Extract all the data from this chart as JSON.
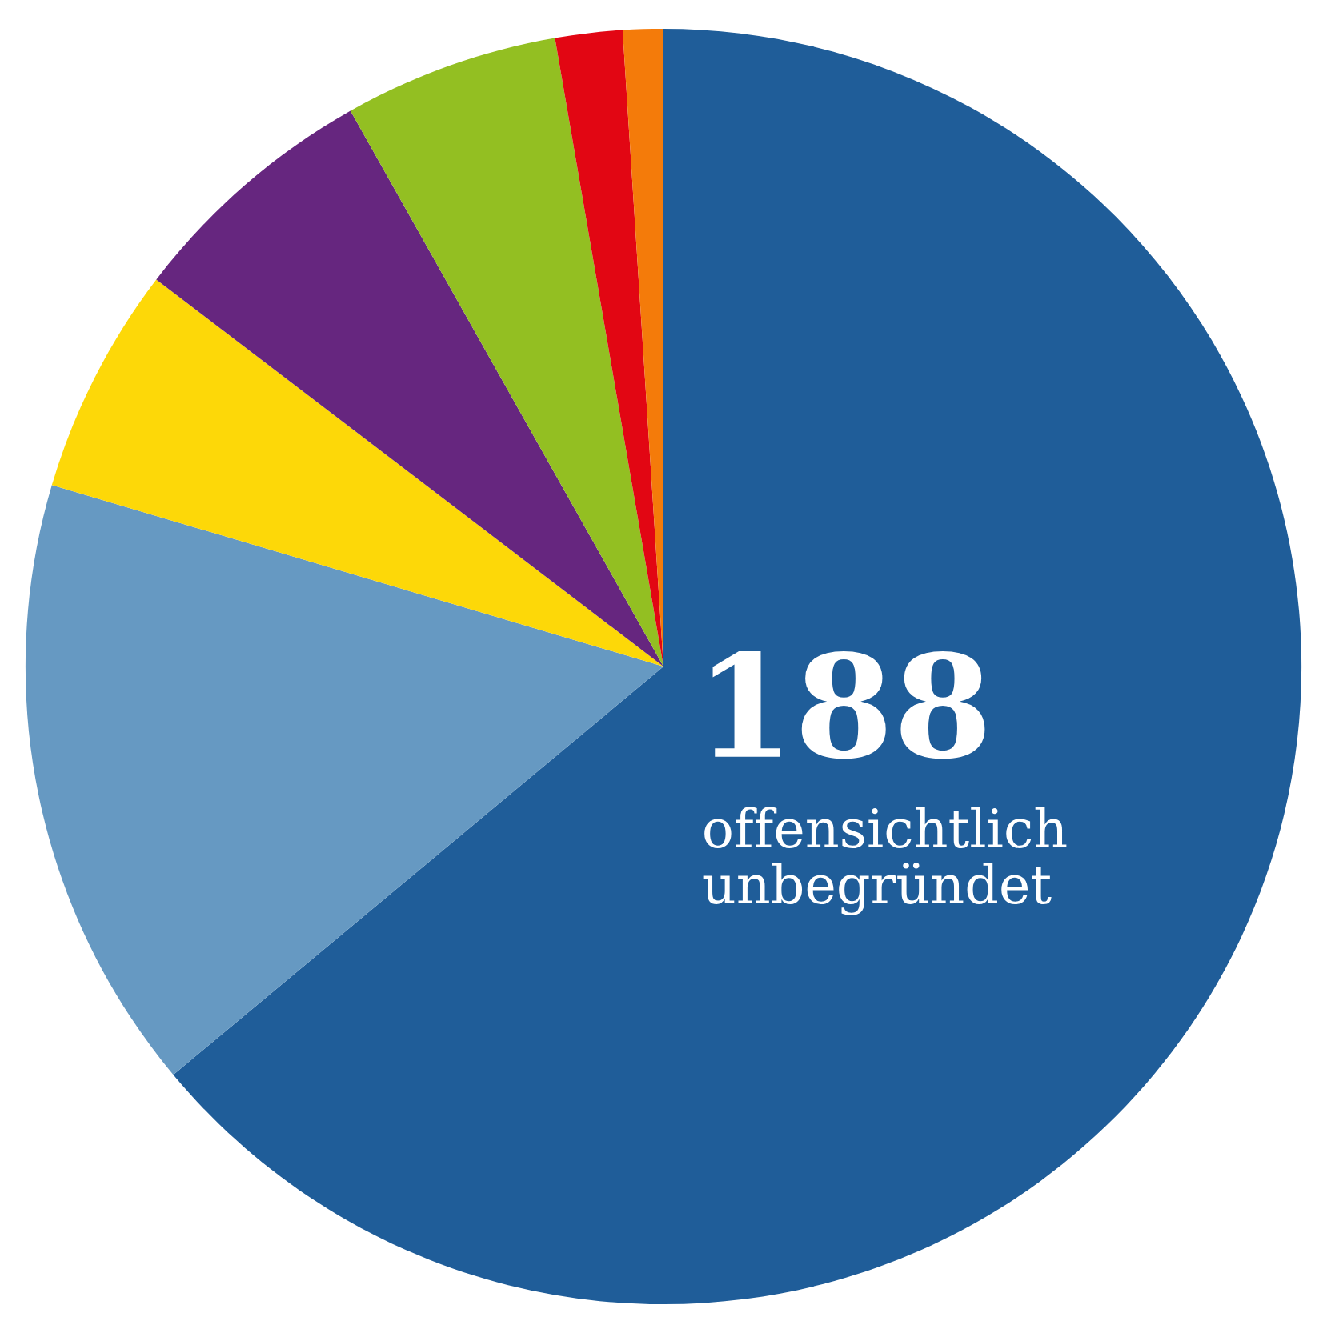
{
  "chart_data": {
    "type": "pie",
    "categories": [
      "offensichtlich unbegründet",
      null,
      null,
      null,
      null,
      null,
      null
    ],
    "values": [
      188,
      46,
      17,
      19,
      16,
      5,
      3
    ],
    "value_labels": [
      "188",
      null,
      null,
      null,
      null,
      null,
      null
    ],
    "colors": [
      "#1f5d99",
      "#6699c2",
      "#fdd808",
      "#66267f",
      "#93bf22",
      "#e20613",
      "#f47b0a"
    ]
  }
}
